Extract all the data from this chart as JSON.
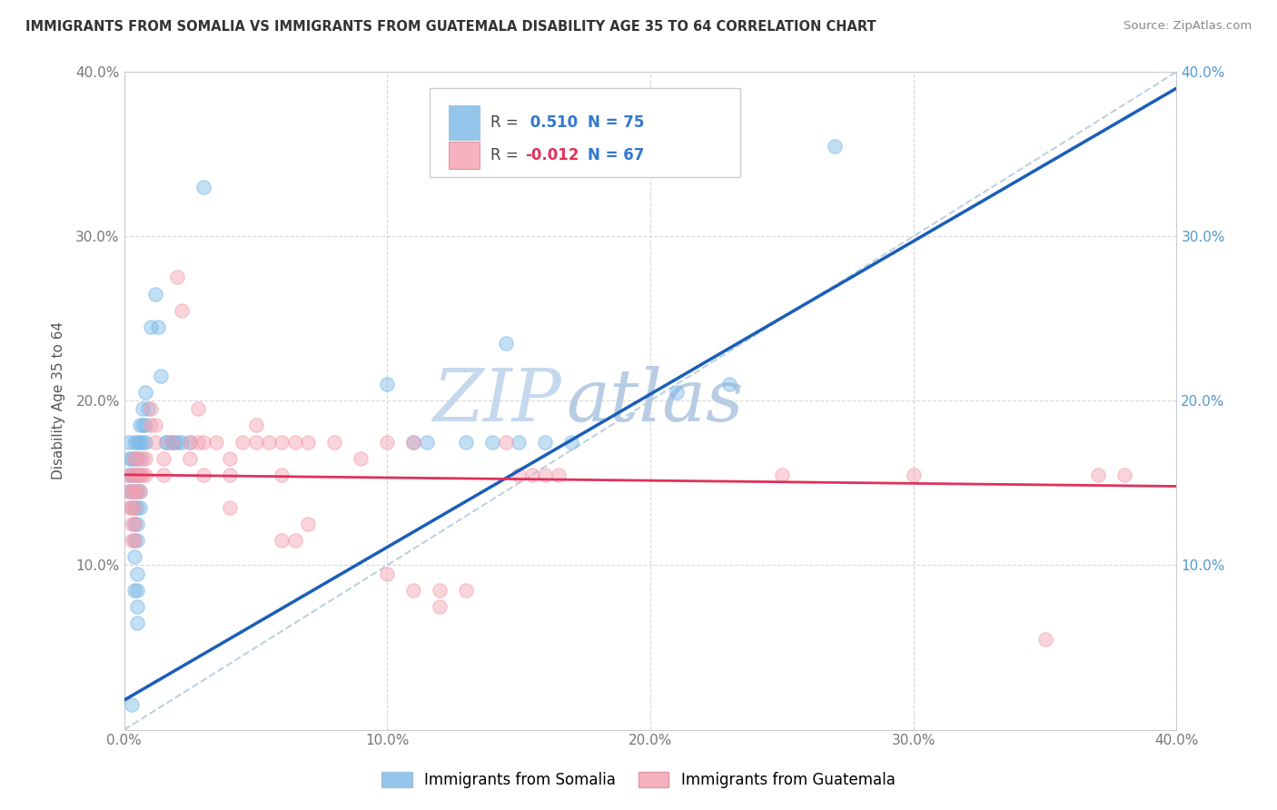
{
  "title": "IMMIGRANTS FROM SOMALIA VS IMMIGRANTS FROM GUATEMALA DISABILITY AGE 35 TO 64 CORRELATION CHART",
  "source": "Source: ZipAtlas.com",
  "ylabel": "Disability Age 35 to 64",
  "xlim": [
    0.0,
    0.4
  ],
  "ylim": [
    0.0,
    0.4
  ],
  "xtick_labels": [
    "0.0%",
    "10.0%",
    "20.0%",
    "30.0%",
    "40.0%"
  ],
  "xtick_vals": [
    0.0,
    0.1,
    0.2,
    0.3,
    0.4
  ],
  "ytick_labels": [
    "10.0%",
    "20.0%",
    "30.0%",
    "40.0%"
  ],
  "ytick_vals": [
    0.1,
    0.2,
    0.3,
    0.4
  ],
  "somalia_color": "#7ab8e8",
  "guatemala_color": "#f4a0b0",
  "somalia_line_color": "#1a5eb8",
  "guatemala_line_color": "#e0305a",
  "somalia_R": 0.51,
  "somalia_N": 75,
  "guatemala_R": -0.012,
  "guatemala_N": 67,
  "somalia_line": [
    0.0,
    0.018,
    0.4,
    0.39
  ],
  "guatemala_line": [
    0.0,
    0.155,
    0.4,
    0.148
  ],
  "diagonal_line": [
    0.0,
    0.0,
    0.4,
    0.4
  ],
  "somalia_scatter": [
    [
      0.002,
      0.175
    ],
    [
      0.002,
      0.165
    ],
    [
      0.002,
      0.155
    ],
    [
      0.002,
      0.145
    ],
    [
      0.003,
      0.165
    ],
    [
      0.003,
      0.155
    ],
    [
      0.003,
      0.145
    ],
    [
      0.003,
      0.135
    ],
    [
      0.004,
      0.175
    ],
    [
      0.004,
      0.165
    ],
    [
      0.004,
      0.155
    ],
    [
      0.004,
      0.145
    ],
    [
      0.004,
      0.135
    ],
    [
      0.004,
      0.125
    ],
    [
      0.004,
      0.115
    ],
    [
      0.004,
      0.105
    ],
    [
      0.005,
      0.175
    ],
    [
      0.005,
      0.165
    ],
    [
      0.005,
      0.155
    ],
    [
      0.005,
      0.145
    ],
    [
      0.005,
      0.135
    ],
    [
      0.005,
      0.125
    ],
    [
      0.005,
      0.115
    ],
    [
      0.005,
      0.095
    ],
    [
      0.005,
      0.085
    ],
    [
      0.005,
      0.075
    ],
    [
      0.005,
      0.065
    ],
    [
      0.006,
      0.185
    ],
    [
      0.006,
      0.175
    ],
    [
      0.006,
      0.165
    ],
    [
      0.006,
      0.155
    ],
    [
      0.006,
      0.145
    ],
    [
      0.006,
      0.135
    ],
    [
      0.007,
      0.195
    ],
    [
      0.007,
      0.185
    ],
    [
      0.007,
      0.175
    ],
    [
      0.008,
      0.205
    ],
    [
      0.008,
      0.185
    ],
    [
      0.008,
      0.175
    ],
    [
      0.009,
      0.195
    ],
    [
      0.01,
      0.245
    ],
    [
      0.012,
      0.265
    ],
    [
      0.013,
      0.245
    ],
    [
      0.014,
      0.215
    ],
    [
      0.016,
      0.175
    ],
    [
      0.016,
      0.175
    ],
    [
      0.018,
      0.175
    ],
    [
      0.018,
      0.175
    ],
    [
      0.019,
      0.175
    ],
    [
      0.02,
      0.175
    ],
    [
      0.022,
      0.175
    ],
    [
      0.025,
      0.175
    ],
    [
      0.003,
      0.015
    ],
    [
      0.004,
      0.085
    ],
    [
      0.03,
      0.33
    ],
    [
      0.1,
      0.21
    ],
    [
      0.11,
      0.175
    ],
    [
      0.115,
      0.175
    ],
    [
      0.13,
      0.175
    ],
    [
      0.14,
      0.175
    ],
    [
      0.145,
      0.235
    ],
    [
      0.15,
      0.175
    ],
    [
      0.16,
      0.175
    ],
    [
      0.17,
      0.175
    ],
    [
      0.21,
      0.205
    ],
    [
      0.23,
      0.21
    ],
    [
      0.27,
      0.355
    ]
  ],
  "guatemala_scatter": [
    [
      0.002,
      0.155
    ],
    [
      0.002,
      0.145
    ],
    [
      0.002,
      0.135
    ],
    [
      0.003,
      0.155
    ],
    [
      0.003,
      0.145
    ],
    [
      0.003,
      0.135
    ],
    [
      0.003,
      0.125
    ],
    [
      0.003,
      0.115
    ],
    [
      0.004,
      0.165
    ],
    [
      0.004,
      0.155
    ],
    [
      0.004,
      0.145
    ],
    [
      0.004,
      0.135
    ],
    [
      0.004,
      0.125
    ],
    [
      0.004,
      0.115
    ],
    [
      0.005,
      0.165
    ],
    [
      0.005,
      0.155
    ],
    [
      0.005,
      0.145
    ],
    [
      0.006,
      0.155
    ],
    [
      0.006,
      0.145
    ],
    [
      0.007,
      0.165
    ],
    [
      0.007,
      0.155
    ],
    [
      0.008,
      0.165
    ],
    [
      0.008,
      0.155
    ],
    [
      0.01,
      0.195
    ],
    [
      0.01,
      0.185
    ],
    [
      0.012,
      0.185
    ],
    [
      0.012,
      0.175
    ],
    [
      0.015,
      0.165
    ],
    [
      0.015,
      0.155
    ],
    [
      0.018,
      0.175
    ],
    [
      0.02,
      0.275
    ],
    [
      0.022,
      0.255
    ],
    [
      0.025,
      0.175
    ],
    [
      0.025,
      0.165
    ],
    [
      0.028,
      0.195
    ],
    [
      0.028,
      0.175
    ],
    [
      0.03,
      0.175
    ],
    [
      0.03,
      0.155
    ],
    [
      0.035,
      0.175
    ],
    [
      0.04,
      0.165
    ],
    [
      0.04,
      0.155
    ],
    [
      0.04,
      0.135
    ],
    [
      0.045,
      0.175
    ],
    [
      0.05,
      0.185
    ],
    [
      0.05,
      0.175
    ],
    [
      0.055,
      0.175
    ],
    [
      0.06,
      0.175
    ],
    [
      0.06,
      0.155
    ],
    [
      0.06,
      0.115
    ],
    [
      0.065,
      0.175
    ],
    [
      0.065,
      0.115
    ],
    [
      0.07,
      0.175
    ],
    [
      0.07,
      0.125
    ],
    [
      0.08,
      0.175
    ],
    [
      0.09,
      0.165
    ],
    [
      0.1,
      0.175
    ],
    [
      0.1,
      0.095
    ],
    [
      0.11,
      0.175
    ],
    [
      0.11,
      0.085
    ],
    [
      0.12,
      0.085
    ],
    [
      0.12,
      0.075
    ],
    [
      0.13,
      0.085
    ],
    [
      0.145,
      0.175
    ],
    [
      0.15,
      0.155
    ],
    [
      0.155,
      0.155
    ],
    [
      0.16,
      0.155
    ],
    [
      0.165,
      0.155
    ],
    [
      0.25,
      0.155
    ],
    [
      0.3,
      0.155
    ],
    [
      0.35,
      0.055
    ],
    [
      0.37,
      0.155
    ],
    [
      0.38,
      0.155
    ]
  ],
  "watermark_zip": "ZIP",
  "watermark_atlas": "atlas",
  "watermark_color_zip": "#c5d8ed",
  "watermark_color_atlas": "#b8cce4",
  "background_color": "#ffffff",
  "grid_color": "#d8d8d8",
  "grid_style": "--"
}
